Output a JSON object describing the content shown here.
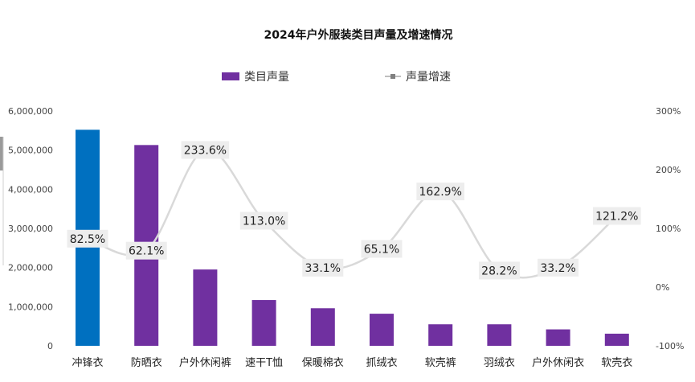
{
  "chart_data": {
    "type": "bar",
    "title": "2024年户外服装类目声量及增速情况",
    "categories": [
      "冲锋衣",
      "防晒衣",
      "户外休闲裤",
      "速干T恤",
      "保暖棉衣",
      "抓绒衣",
      "软壳裤",
      "羽绒衣",
      "户外休闲衣",
      "软壳衣"
    ],
    "series": [
      {
        "name": "类目声量",
        "type": "bar",
        "axis": "left",
        "color": "#7030A0",
        "highlight_color": "#0070C0",
        "highlight_index": 0,
        "values": [
          5520000,
          5130000,
          1950000,
          1170000,
          960000,
          820000,
          550000,
          550000,
          420000,
          310000
        ]
      },
      {
        "name": "声量增速",
        "type": "line",
        "axis": "right",
        "color": "#D9D9D9",
        "values": [
          82.5,
          62.1,
          233.6,
          113.0,
          33.1,
          65.1,
          162.9,
          28.2,
          33.2,
          121.2
        ],
        "labels": [
          "82.5%",
          "62.1%",
          "233.6%",
          "113.0%",
          "33.1%",
          "65.1%",
          "162.9%",
          "28.2%",
          "33.2%",
          "121.2%"
        ]
      }
    ],
    "y_left": {
      "range": [
        0,
        6000000
      ],
      "ticks": [
        "0",
        "1,000,000",
        "2,000,000",
        "3,000,000",
        "4,000,000",
        "5,000,000",
        "6,000,000"
      ]
    },
    "y_right": {
      "range": [
        -100,
        300
      ],
      "ticks": [
        "-100%",
        "0%",
        "100%",
        "200%",
        "300%"
      ]
    },
    "grid": false,
    "legend_position": "top-center"
  }
}
